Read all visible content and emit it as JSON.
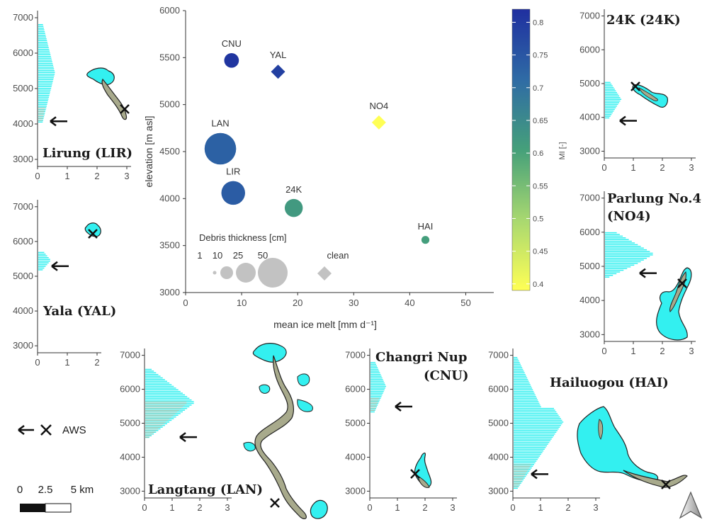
{
  "chart_data": [
    {
      "type": "scatter",
      "xlabel": "mean ice melt [mm d⁻¹]",
      "ylabel": "elevation [m asl]",
      "xlim": [
        0,
        55
      ],
      "ylim": [
        3000,
        6000
      ],
      "x_ticks": [
        "0",
        "10",
        "20",
        "30",
        "40",
        "50"
      ],
      "y_ticks": [
        "3000",
        "3500",
        "4000",
        "4500",
        "5000",
        "5500",
        "6000"
      ],
      "colorbar_label": "MI [-]",
      "colorbar_ticks": [
        "0.4",
        "0.45",
        "0.5",
        "0.55",
        "0.6",
        "0.65",
        "0.7",
        "0.75",
        "0.8"
      ],
      "colorbar_range": [
        0.39,
        0.82
      ],
      "size_legend_title": "Debris thickness [cm]",
      "size_legend_items": [
        "1",
        "10",
        "25",
        "50"
      ],
      "clean_label": "clean",
      "points": [
        {
          "label": "CNU",
          "x": 8.2,
          "y": 5470,
          "mi": 0.81,
          "debris_cm": 8,
          "shape": "circle"
        },
        {
          "label": "YAL",
          "x": 16.5,
          "y": 5350,
          "mi": 0.79,
          "debris_cm": 0,
          "shape": "diamond"
        },
        {
          "label": "NO4",
          "x": 34.5,
          "y": 4810,
          "mi": 0.39,
          "debris_cm": 0,
          "shape": "diamond"
        },
        {
          "label": "LAN",
          "x": 6.2,
          "y": 4530,
          "mi": 0.73,
          "debris_cm": 55,
          "shape": "circle"
        },
        {
          "label": "LIR",
          "x": 8.5,
          "y": 4060,
          "mi": 0.74,
          "debris_cm": 28,
          "shape": "circle"
        },
        {
          "label": "24K",
          "x": 19.3,
          "y": 3900,
          "mi": 0.62,
          "debris_cm": 14,
          "shape": "circle"
        },
        {
          "label": "HAI",
          "x": 42.8,
          "y": 3560,
          "mi": 0.61,
          "debris_cm": 1,
          "shape": "circle"
        }
      ]
    },
    {
      "type": "bar",
      "name": "Lirung (LIR)",
      "x_ticks": [
        "0",
        "1",
        "2",
        "3"
      ],
      "y_ticks": [
        "3000",
        "4000",
        "5000",
        "6000",
        "7000"
      ],
      "aws_elev": 4075
    },
    {
      "type": "bar",
      "name": "Yala (YAL)",
      "x_ticks": [
        "0",
        "1",
        "2"
      ],
      "y_ticks": [
        "3000",
        "4000",
        "5000",
        "6000",
        "7000"
      ],
      "aws_elev": 5290
    },
    {
      "type": "bar",
      "name": "24K (24K)",
      "x_ticks": [
        "0",
        "1",
        "2",
        "3"
      ],
      "y_ticks": [
        "3000",
        "4000",
        "5000",
        "6000",
        "7000"
      ],
      "aws_elev": 3900
    },
    {
      "type": "bar",
      "name": "Parlung No.4 (NO4)",
      "x_ticks": [
        "0",
        "1",
        "2",
        "3"
      ],
      "y_ticks": [
        "3000",
        "4000",
        "5000",
        "6000",
        "7000"
      ],
      "aws_elev": 4800
    },
    {
      "type": "bar",
      "name": "Langtang (LAN)",
      "x_ticks": [
        "0",
        "1",
        "2",
        "3"
      ],
      "y_ticks": [
        "3000",
        "4000",
        "5000",
        "6000",
        "7000"
      ],
      "aws_elev": 4590
    },
    {
      "type": "bar",
      "name": "Changri Nup (CNU)",
      "x_ticks": [
        "0",
        "1",
        "2",
        "3"
      ],
      "y_ticks": [
        "3000",
        "4000",
        "5000",
        "6000",
        "7000"
      ],
      "aws_elev": 5490
    },
    {
      "type": "bar",
      "name": "Hailuogou (HAI)",
      "x_ticks": [
        "0",
        "1",
        "2",
        "3"
      ],
      "y_ticks": [
        "3000",
        "4000",
        "5000",
        "6000",
        "7000"
      ],
      "aws_elev": 3500
    }
  ],
  "labels": {
    "lir": "Lirung (LIR)",
    "yal": "Yala (YAL)",
    "k24": "24K (24K)",
    "no4_line1": "Parlung No.4",
    "no4_line2": "(NO4)",
    "lan": "Langtang (LAN)",
    "cnu_line1": "Changri Nup",
    "cnu_line2": "(CNU)",
    "hai": "Hailuogou (HAI)",
    "aws_legend": "AWS",
    "scale_0": "0",
    "scale_mid": "2.5",
    "scale_end": "5 km"
  },
  "colors": {
    "clean_ice": "#33f0f0",
    "debris": "#a8aa8c",
    "debris_bar": "#f0a060",
    "point_low": "#ffff55",
    "point_high": "#1f2fa0",
    "size_legend": "#c2c2c2"
  }
}
